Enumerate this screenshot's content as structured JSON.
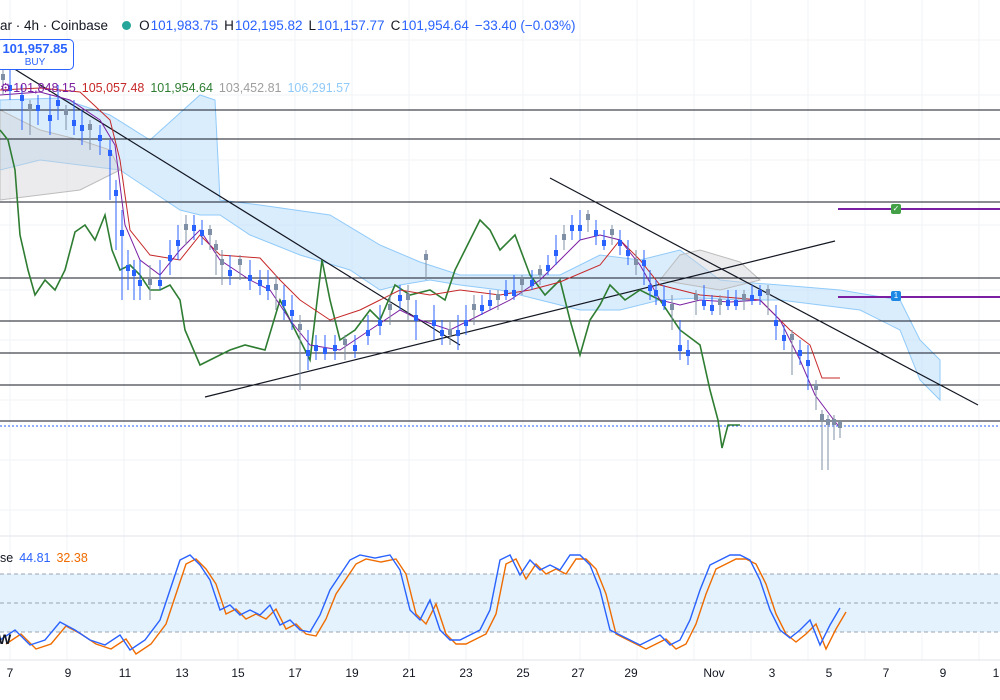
{
  "header": {
    "symbol": "ar · 4h · Coinbase",
    "open_label": "O",
    "open": "101,983.75",
    "high_label": "H",
    "high": "102,195.82",
    "low_label": "L",
    "low": "101,157.77",
    "close_label": "C",
    "close": "101,954.64",
    "change": "−33.40 (−0.03%)"
  },
  "buy_box": {
    "price": "101,957.85",
    "label": "BUY"
  },
  "ichimoku": {
    "icon": "settings-icon-partial",
    "values": [
      "101,848.15",
      "105,057.48",
      "101,954.64",
      "103,452.81",
      "106,291.57"
    ],
    "colors": [
      "#7b1fa2",
      "#c62828",
      "#2e7d32",
      "#9e9e9e",
      "#90caf9"
    ]
  },
  "rsi": {
    "label": "se",
    "values": [
      "44.81",
      "32.38"
    ],
    "colors": [
      "#2962ff",
      "#ef6c00"
    ]
  },
  "w_label": "W",
  "markers": [
    {
      "icon": "checkmark-icon",
      "text": "✓",
      "color": "#43a047"
    },
    {
      "icon": "number-badge-icon",
      "text": "1",
      "color": "#1e88e5"
    }
  ],
  "x_axis": [
    "7",
    "9",
    "11",
    "13",
    "15",
    "17",
    "19",
    "21",
    "23",
    "25",
    "27",
    "29",
    "Nov",
    "3",
    "5",
    "7",
    "9",
    "1"
  ],
  "colors": {
    "bull": "#2962ff",
    "bear": "#2962ff",
    "cloud": "#bbdefb",
    "band": "#e3f2fd",
    "line": "#131722"
  }
}
